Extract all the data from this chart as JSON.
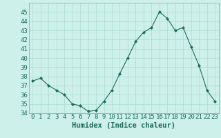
{
  "x": [
    0,
    1,
    2,
    3,
    4,
    5,
    6,
    7,
    8,
    9,
    10,
    11,
    12,
    13,
    14,
    15,
    16,
    17,
    18,
    19,
    20,
    21,
    22,
    23
  ],
  "y": [
    37.5,
    37.8,
    37.0,
    36.5,
    36.0,
    35.0,
    34.8,
    34.2,
    34.3,
    35.3,
    36.5,
    38.3,
    40.0,
    41.8,
    42.8,
    43.3,
    45.0,
    44.3,
    43.0,
    43.3,
    41.2,
    39.2,
    36.5,
    35.3
  ],
  "line_color": "#1a6b5a",
  "marker": "D",
  "marker_size": 2,
  "bg_color": "#cef0ea",
  "grid_color": "#aaddcc",
  "xlabel": "Humidex (Indice chaleur)",
  "ylim": [
    34,
    46
  ],
  "xlim": [
    -0.5,
    23.5
  ],
  "yticks": [
    34,
    35,
    36,
    37,
    38,
    39,
    40,
    41,
    42,
    43,
    44,
    45
  ],
  "xticks": [
    0,
    1,
    2,
    3,
    4,
    5,
    6,
    7,
    8,
    9,
    10,
    11,
    12,
    13,
    14,
    15,
    16,
    17,
    18,
    19,
    20,
    21,
    22,
    23
  ],
  "tick_label_color": "#1a6b5a",
  "tick_label_size": 6.5,
  "xlabel_size": 7.5,
  "xlabel_color": "#1a6b5a",
  "spine_color": "#7aaa99"
}
